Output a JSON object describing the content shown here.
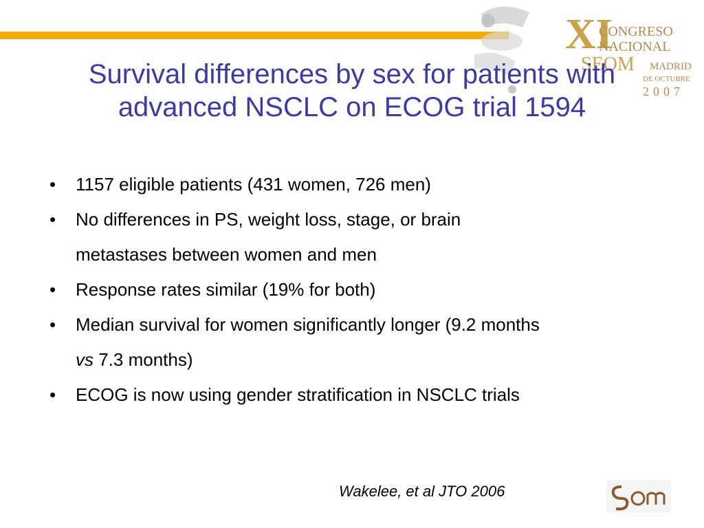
{
  "colors": {
    "accent_bar": "#f3ab00",
    "title": "#3a3aa8",
    "logo_gold": "#c9a24a",
    "logo_grey": "#b9b9b9"
  },
  "logo": {
    "numeral": "XI",
    "line1": "CONGRESO",
    "line2": "NACIONAL",
    "line3": "SEOM",
    "line3b": "MADRID",
    "line4": "DE OCTUBRE",
    "year": "2007"
  },
  "slide": {
    "title_line1": "Survival differences by sex for patients with",
    "title_line2": "advanced NSCLC on ECOG trial 1594",
    "bullets": [
      {
        "line1": "1157 eligible patients (431 women, 726 men)"
      },
      {
        "line1": "No differences in PS, weight loss, stage, or brain",
        "line2": "metastases between women and men"
      },
      {
        "line1": "Response rates similar (19% for both)"
      },
      {
        "line1": "Median survival for women significantly longer (9.2 months",
        "line2_em": "vs",
        "line2_rest": " 7.3 months)"
      },
      {
        "line1": "ECOG is now using gender stratification in NSCLC trials"
      }
    ],
    "citation": "Wakelee, et al JTO 2006"
  },
  "icons": {
    "bullet": "•",
    "seom_logo": "seom-monogram-icon"
  }
}
